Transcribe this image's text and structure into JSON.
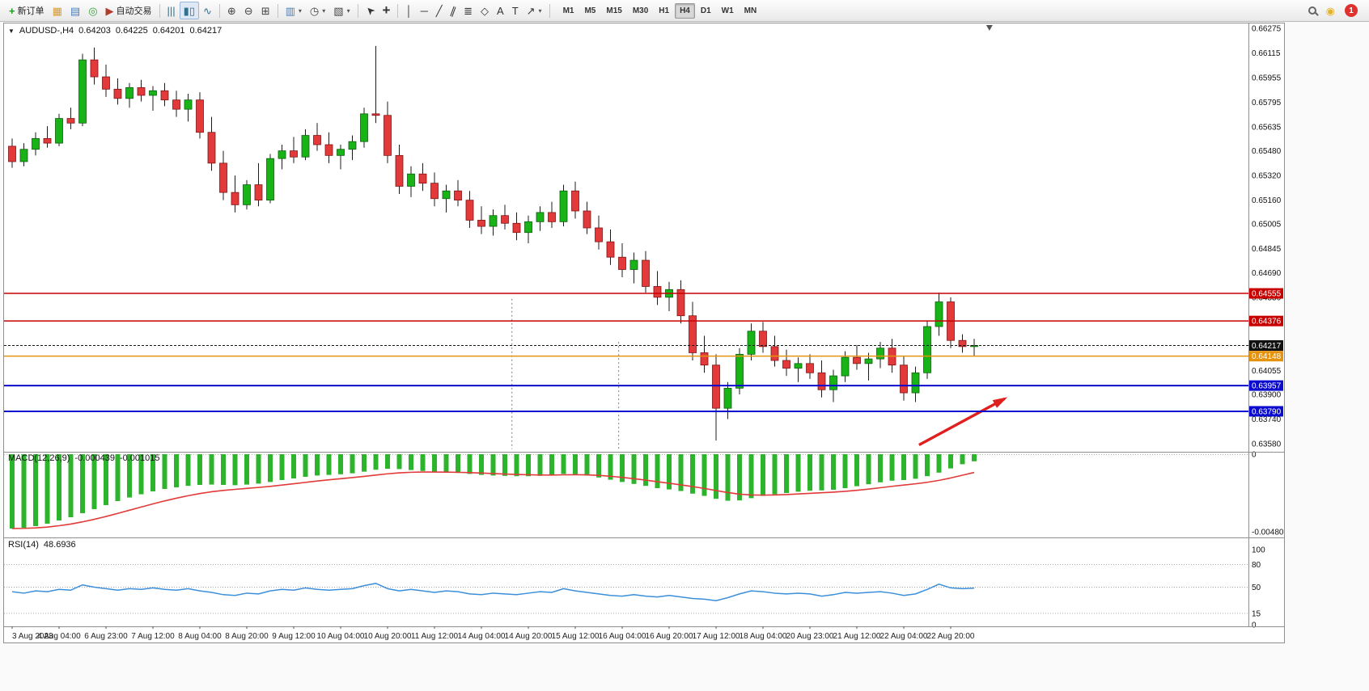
{
  "icons": {
    "caret": "▾",
    "legend_caret": "▼"
  },
  "app": {
    "toolbar": {
      "buttons": [
        {
          "name": "new-order",
          "glyph": "+",
          "glyph_color": "#18a018",
          "bold": true,
          "label": "新订单"
        },
        {
          "name": "market-watch",
          "glyph": "▦",
          "glyph_color": "#d99a2b"
        },
        {
          "name": "data-window",
          "glyph": "▤",
          "glyph_color": "#4a7ebb"
        },
        {
          "name": "refresh",
          "glyph": "◎",
          "glyph_color": "#3aa13a"
        },
        {
          "name": "auto-trading",
          "glyph": "▶",
          "glyph_color": "#b23b2e",
          "label": "自动交易"
        },
        {
          "sep": true
        },
        {
          "name": "chart-bars",
          "glyph": "|||",
          "glyph_color": "#31708f"
        },
        {
          "name": "chart-candles",
          "glyph": "▮▯",
          "glyph_color": "#31708f",
          "active": true
        },
        {
          "name": "chart-line",
          "glyph": "∿",
          "glyph_color": "#31708f"
        },
        {
          "sep": true
        },
        {
          "name": "zoom-in",
          "glyph": "⊕",
          "glyph_color": "#444444"
        },
        {
          "name": "zoom-out",
          "glyph": "⊖",
          "glyph_color": "#444444"
        },
        {
          "name": "tile-windows",
          "glyph": "⊞",
          "glyph_color": "#444444"
        },
        {
          "sep": true
        },
        {
          "name": "new-chart",
          "glyph": "▥",
          "glyph_color": "#4a7ebb",
          "dropdown": true
        },
        {
          "name": "periods",
          "glyph": "◷",
          "glyph_color": "#444444",
          "dropdown": true
        },
        {
          "name": "templates",
          "glyph": "▧",
          "glyph_color": "#444444",
          "dropdown": true
        },
        {
          "sep": true
        },
        {
          "name": "cursor",
          "glyph": "➤",
          "glyph_color": "#333333",
          "rot": -135
        },
        {
          "name": "crosshair",
          "glyph": "+",
          "glyph_color": "#333333",
          "big": true
        },
        {
          "sep": true
        },
        {
          "name": "vertical-line",
          "glyph": "│",
          "glyph_color": "#333333"
        },
        {
          "name": "horizontal-line",
          "glyph": "─",
          "glyph_color": "#333333"
        },
        {
          "name": "trendline",
          "glyph": "╱",
          "glyph_color": "#333333"
        },
        {
          "name": "equidistant-channel",
          "glyph": "∥",
          "glyph_color": "#333333",
          "rot": 20
        },
        {
          "name": "fibonacci",
          "glyph": "≣",
          "glyph_color": "#333333"
        },
        {
          "name": "shapes",
          "glyph": "◇",
          "glyph_color": "#333333"
        },
        {
          "name": "text",
          "glyph": "A",
          "glyph_color": "#333333"
        },
        {
          "name": "text-label",
          "glyph": "T",
          "glyph_color": "#333333"
        },
        {
          "name": "arrows",
          "glyph": "↗",
          "glyph_color": "#333333",
          "dropdown": true
        },
        {
          "sep": true
        }
      ],
      "timeframes": [
        "M1",
        "M5",
        "M15",
        "M30",
        "H1",
        "H4",
        "D1",
        "W1",
        "MN"
      ],
      "active_timeframe": "H4",
      "right_buttons": [
        {
          "name": "search",
          "icon": "magnifier"
        },
        {
          "name": "community",
          "glyph": "◉",
          "glyph_color": "#e6b32e"
        },
        {
          "name": "notifications",
          "badge": "1",
          "badge_color": "#e03131"
        }
      ]
    }
  },
  "chart": {
    "legend": {
      "symbol": "AUDUSD-,H4",
      "open": "0.64203",
      "high": "0.64225",
      "low": "0.64201",
      "close": "0.64217"
    },
    "price_axis": {
      "ticks": [
        "0.66275",
        "0.66115",
        "0.65955",
        "0.65795",
        "0.65635",
        "0.65480",
        "0.65320",
        "0.65160",
        "0.65005",
        "0.64845",
        "0.64690",
        "0.64530",
        "0.64370",
        "0.64055",
        "0.63900",
        "0.63740",
        "0.63580"
      ],
      "badges": [
        {
          "label": "0.64555",
          "price": 0.64555,
          "color": "#c80000"
        },
        {
          "label": "0.64376",
          "price": 0.64376,
          "color": "#c80000"
        },
        {
          "label": "0.64217",
          "price": 0.64217,
          "color": "#101010"
        },
        {
          "label": "0.64148",
          "price": 0.64148,
          "color": "#e5920f"
        },
        {
          "label": "0.63957",
          "price": 0.63957,
          "color": "#0b0bcf"
        },
        {
          "label": "0.63790",
          "price": 0.6379,
          "color": "#0b0bcf"
        }
      ]
    }
  },
  "macd_panel": {
    "title": "MACD(12,26,9)",
    "main_value": "-0.000439",
    "signal_value": "-0.001015",
    "axis_zero": "0",
    "axis_min": "-0.004802"
  },
  "rsi_panel": {
    "title": "RSI(14)",
    "value": "48.6936",
    "axis_labels": [
      "100",
      "80",
      "50",
      "15",
      "0"
    ],
    "dashed_levels": [
      80,
      50,
      15
    ]
  },
  "chart_data": {
    "type": "candlestick",
    "symbol": "AUDUSD-",
    "timeframe": "H4",
    "style": {
      "up": "#17b317",
      "down": "#e23a3a",
      "wick": "#1c1c1c",
      "macd_histogram": "#2cb52c",
      "macd_signal": "#e23a3a",
      "rsi_line": "#3c8fd9"
    },
    "levels": [
      {
        "price": 0.64555,
        "color": "#c80000",
        "width": 1.5
      },
      {
        "price": 0.64376,
        "color": "#c80000",
        "width": 1.5
      },
      {
        "price": 0.64217,
        "color": "#151515",
        "width": 1,
        "dash": "3,2"
      },
      {
        "price": 0.64148,
        "color": "#e5920f",
        "width": 1.5
      },
      {
        "price": 0.63957,
        "color": "#0b0bcf",
        "width": 2
      },
      {
        "price": 0.6379,
        "color": "#0b0bcf",
        "width": 2
      }
    ],
    "bars_ohlc": [
      [
        0.6551,
        0.6556,
        0.6537,
        0.6541
      ],
      [
        0.6541,
        0.6553,
        0.6538,
        0.6549
      ],
      [
        0.6549,
        0.656,
        0.6545,
        0.6556
      ],
      [
        0.6556,
        0.6564,
        0.655,
        0.6553
      ],
      [
        0.6553,
        0.6572,
        0.6551,
        0.6569
      ],
      [
        0.6569,
        0.6576,
        0.6562,
        0.6566
      ],
      [
        0.6566,
        0.6611,
        0.6564,
        0.6607
      ],
      [
        0.6607,
        0.6615,
        0.6591,
        0.6596
      ],
      [
        0.6596,
        0.6604,
        0.6583,
        0.6588
      ],
      [
        0.6588,
        0.6595,
        0.6578,
        0.6582
      ],
      [
        0.6582,
        0.6592,
        0.6576,
        0.6589
      ],
      [
        0.6589,
        0.6594,
        0.658,
        0.6584
      ],
      [
        0.6584,
        0.659,
        0.6574,
        0.6587
      ],
      [
        0.6587,
        0.6592,
        0.6577,
        0.6581
      ],
      [
        0.6581,
        0.6587,
        0.657,
        0.6575
      ],
      [
        0.6575,
        0.6585,
        0.6567,
        0.6581
      ],
      [
        0.6581,
        0.6586,
        0.6556,
        0.656
      ],
      [
        0.656,
        0.657,
        0.6535,
        0.654
      ],
      [
        0.654,
        0.6548,
        0.6516,
        0.6521
      ],
      [
        0.6521,
        0.6532,
        0.6508,
        0.6513
      ],
      [
        0.6513,
        0.6529,
        0.651,
        0.6526
      ],
      [
        0.6526,
        0.654,
        0.6512,
        0.6516
      ],
      [
        0.6516,
        0.6546,
        0.6514,
        0.6543
      ],
      [
        0.6543,
        0.6552,
        0.6536,
        0.6548
      ],
      [
        0.6548,
        0.6557,
        0.654,
        0.6544
      ],
      [
        0.6544,
        0.6562,
        0.6542,
        0.6558
      ],
      [
        0.6558,
        0.6566,
        0.6548,
        0.6552
      ],
      [
        0.6552,
        0.656,
        0.654,
        0.6545
      ],
      [
        0.6545,
        0.6552,
        0.6536,
        0.6549
      ],
      [
        0.6549,
        0.6558,
        0.6542,
        0.6554
      ],
      [
        0.6554,
        0.6576,
        0.655,
        0.6572
      ],
      [
        0.6572,
        0.6616,
        0.6566,
        0.6571
      ],
      [
        0.6571,
        0.658,
        0.654,
        0.6545
      ],
      [
        0.6545,
        0.6552,
        0.652,
        0.6525
      ],
      [
        0.6525,
        0.6538,
        0.6518,
        0.6533
      ],
      [
        0.6533,
        0.654,
        0.6522,
        0.6527
      ],
      [
        0.6527,
        0.6534,
        0.6512,
        0.6517
      ],
      [
        0.6517,
        0.6526,
        0.6508,
        0.6522
      ],
      [
        0.6522,
        0.6529,
        0.6512,
        0.6516
      ],
      [
        0.6516,
        0.6522,
        0.6498,
        0.6503
      ],
      [
        0.6503,
        0.6512,
        0.6494,
        0.6499
      ],
      [
        0.6499,
        0.651,
        0.6493,
        0.6506
      ],
      [
        0.6506,
        0.6513,
        0.6497,
        0.6501
      ],
      [
        0.6501,
        0.6508,
        0.649,
        0.6495
      ],
      [
        0.6495,
        0.6506,
        0.6488,
        0.6502
      ],
      [
        0.6502,
        0.6512,
        0.6496,
        0.6508
      ],
      [
        0.6508,
        0.6515,
        0.6498,
        0.6502
      ],
      [
        0.6502,
        0.6526,
        0.6499,
        0.6522
      ],
      [
        0.6522,
        0.6528,
        0.6504,
        0.6509
      ],
      [
        0.6509,
        0.6515,
        0.6494,
        0.6498
      ],
      [
        0.6498,
        0.6506,
        0.6484,
        0.6489
      ],
      [
        0.6489,
        0.6497,
        0.6474,
        0.6479
      ],
      [
        0.6479,
        0.6488,
        0.6466,
        0.6471
      ],
      [
        0.6471,
        0.6482,
        0.6462,
        0.6477
      ],
      [
        0.6477,
        0.6483,
        0.6456,
        0.646
      ],
      [
        0.646,
        0.647,
        0.6448,
        0.6453
      ],
      [
        0.6453,
        0.6463,
        0.6444,
        0.6458
      ],
      [
        0.6458,
        0.6464,
        0.6436,
        0.6441
      ],
      [
        0.6441,
        0.645,
        0.6412,
        0.6417
      ],
      [
        0.6417,
        0.6428,
        0.6404,
        0.6409
      ],
      [
        0.6409,
        0.6416,
        0.636,
        0.6381
      ],
      [
        0.6381,
        0.6398,
        0.6374,
        0.6394
      ],
      [
        0.6394,
        0.642,
        0.639,
        0.6416
      ],
      [
        0.6416,
        0.6436,
        0.6412,
        0.6431
      ],
      [
        0.6431,
        0.6437,
        0.6417,
        0.6421
      ],
      [
        0.6421,
        0.6428,
        0.6408,
        0.6412
      ],
      [
        0.6412,
        0.6419,
        0.6402,
        0.6407
      ],
      [
        0.6407,
        0.6414,
        0.6398,
        0.641
      ],
      [
        0.641,
        0.6416,
        0.64,
        0.6404
      ],
      [
        0.6404,
        0.6412,
        0.6388,
        0.6393
      ],
      [
        0.6393,
        0.6406,
        0.6385,
        0.6402
      ],
      [
        0.6402,
        0.6418,
        0.6398,
        0.6414
      ],
      [
        0.6414,
        0.6422,
        0.6406,
        0.641
      ],
      [
        0.641,
        0.6417,
        0.6399,
        0.6413
      ],
      [
        0.6413,
        0.6424,
        0.6407,
        0.642
      ],
      [
        0.642,
        0.6426,
        0.6404,
        0.6409
      ],
      [
        0.6409,
        0.6415,
        0.6386,
        0.6391
      ],
      [
        0.6391,
        0.6408,
        0.6385,
        0.6404
      ],
      [
        0.6404,
        0.6438,
        0.64,
        0.6434
      ],
      [
        0.6434,
        0.6456,
        0.6428,
        0.645
      ],
      [
        0.645,
        0.6453,
        0.642,
        0.6425
      ],
      [
        0.6425,
        0.6429,
        0.6417,
        0.6421
      ],
      [
        0.6421,
        0.6426,
        0.6415,
        0.64217
      ]
    ],
    "time_labels": [
      "3 Aug 2023",
      "4 Aug 04:00",
      "6 Aug 23:00",
      "7 Aug 12:00",
      "8 Aug 04:00",
      "8 Aug 20:00",
      "9 Aug 12:00",
      "10 Aug 04:00",
      "10 Aug 20:00",
      "11 Aug 12:00",
      "14 Aug 04:00",
      "14 Aug 20:00",
      "15 Aug 12:00",
      "16 Aug 04:00",
      "16 Aug 20:00",
      "17 Aug 12:00",
      "18 Aug 04:00",
      "20 Aug 23:00",
      "21 Aug 12:00",
      "22 Aug 04:00",
      "22 Aug 20:00"
    ],
    "label_every_n_bars": 4,
    "indicators": {
      "macd": {
        "params": "12,26,9",
        "histogram_e5": [
          -460,
          -455,
          -445,
          -430,
          -410,
          -390,
          -365,
          -340,
          -315,
          -290,
          -268,
          -248,
          -230,
          -215,
          -205,
          -196,
          -190,
          -188,
          -190,
          -192,
          -188,
          -182,
          -172,
          -160,
          -150,
          -140,
          -132,
          -128,
          -124,
          -118,
          -108,
          -96,
          -90,
          -92,
          -98,
          -104,
          -110,
          -113,
          -116,
          -122,
          -128,
          -132,
          -134,
          -136,
          -136,
          -134,
          -130,
          -122,
          -124,
          -132,
          -144,
          -158,
          -172,
          -184,
          -196,
          -210,
          -218,
          -228,
          -244,
          -258,
          -276,
          -288,
          -286,
          -272,
          -258,
          -248,
          -240,
          -232,
          -226,
          -224,
          -220,
          -210,
          -198,
          -186,
          -174,
          -164,
          -160,
          -152,
          -136,
          -114,
          -88,
          -62,
          -43.9
        ],
        "current_main": "-0.000439",
        "current_signal": "-0.001015"
      },
      "rsi": {
        "params": "14",
        "values": [
          44,
          42,
          45,
          44,
          47,
          46,
          53,
          50,
          48,
          46,
          48,
          47,
          49,
          47,
          46,
          48,
          45,
          43,
          40,
          39,
          42,
          41,
          45,
          47,
          46,
          49,
          47,
          46,
          47,
          48,
          52,
          55,
          48,
          45,
          47,
          45,
          43,
          45,
          44,
          41,
          40,
          42,
          41,
          40,
          42,
          44,
          43,
          48,
          45,
          43,
          41,
          39,
          38,
          40,
          38,
          37,
          39,
          37,
          35,
          34,
          32,
          36,
          41,
          45,
          44,
          42,
          41,
          42,
          41,
          38,
          40,
          43,
          42,
          43,
          44,
          42,
          39,
          41,
          47,
          54,
          49,
          48,
          48.69
        ],
        "current": "48.6936"
      }
    },
    "annotations": {
      "arrow": {
        "x1_bar": 77.3,
        "p1": 0.63572,
        "x2_bar": 84.6,
        "p2": 0.63872,
        "color": "#e01f1f"
      },
      "dashed_vlines": [
        {
          "bar": 42.6,
          "p_from": 0.6452,
          "p_to": 0.63545
        },
        {
          "bar": 51.7,
          "p_from": 0.6424,
          "p_to": 0.63545
        }
      ],
      "shift_marker_bar": 83.3
    }
  }
}
